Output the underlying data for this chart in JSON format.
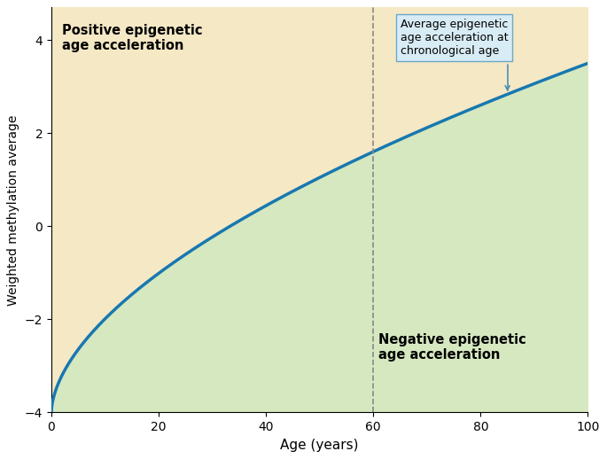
{
  "xlim": [
    0,
    100
  ],
  "ylim": [
    -4,
    4.7
  ],
  "plot_ylim_top": 4.7,
  "xlabel": "Age (years)",
  "ylabel": "Weighted methylation average",
  "xticks": [
    0,
    20,
    40,
    60,
    80,
    100
  ],
  "yticks": [
    -4,
    -2,
    0,
    2,
    4
  ],
  "curve_color": "#1878b0",
  "curve_linewidth": 2.5,
  "upper_fill_color": "#f5e8c5",
  "lower_fill_color": "#d6e8c0",
  "dashed_line_x": 60,
  "dashed_line_color": "#888888",
  "positive_label": "Positive epigenetic\nage acceleration",
  "negative_label": "Negative epigenetic\nage acceleration",
  "annotation_text": "Average epigenetic\nage acceleration at\nchronological age",
  "annotation_box_color": "#d8ecf5",
  "annotation_box_edge": "#6aaac8",
  "background_color": "#ffffff",
  "label_fontsize": 10,
  "tick_fontsize": 10,
  "curve_a": 1.878,
  "curve_b": -4.0,
  "curve_power": 0.42
}
